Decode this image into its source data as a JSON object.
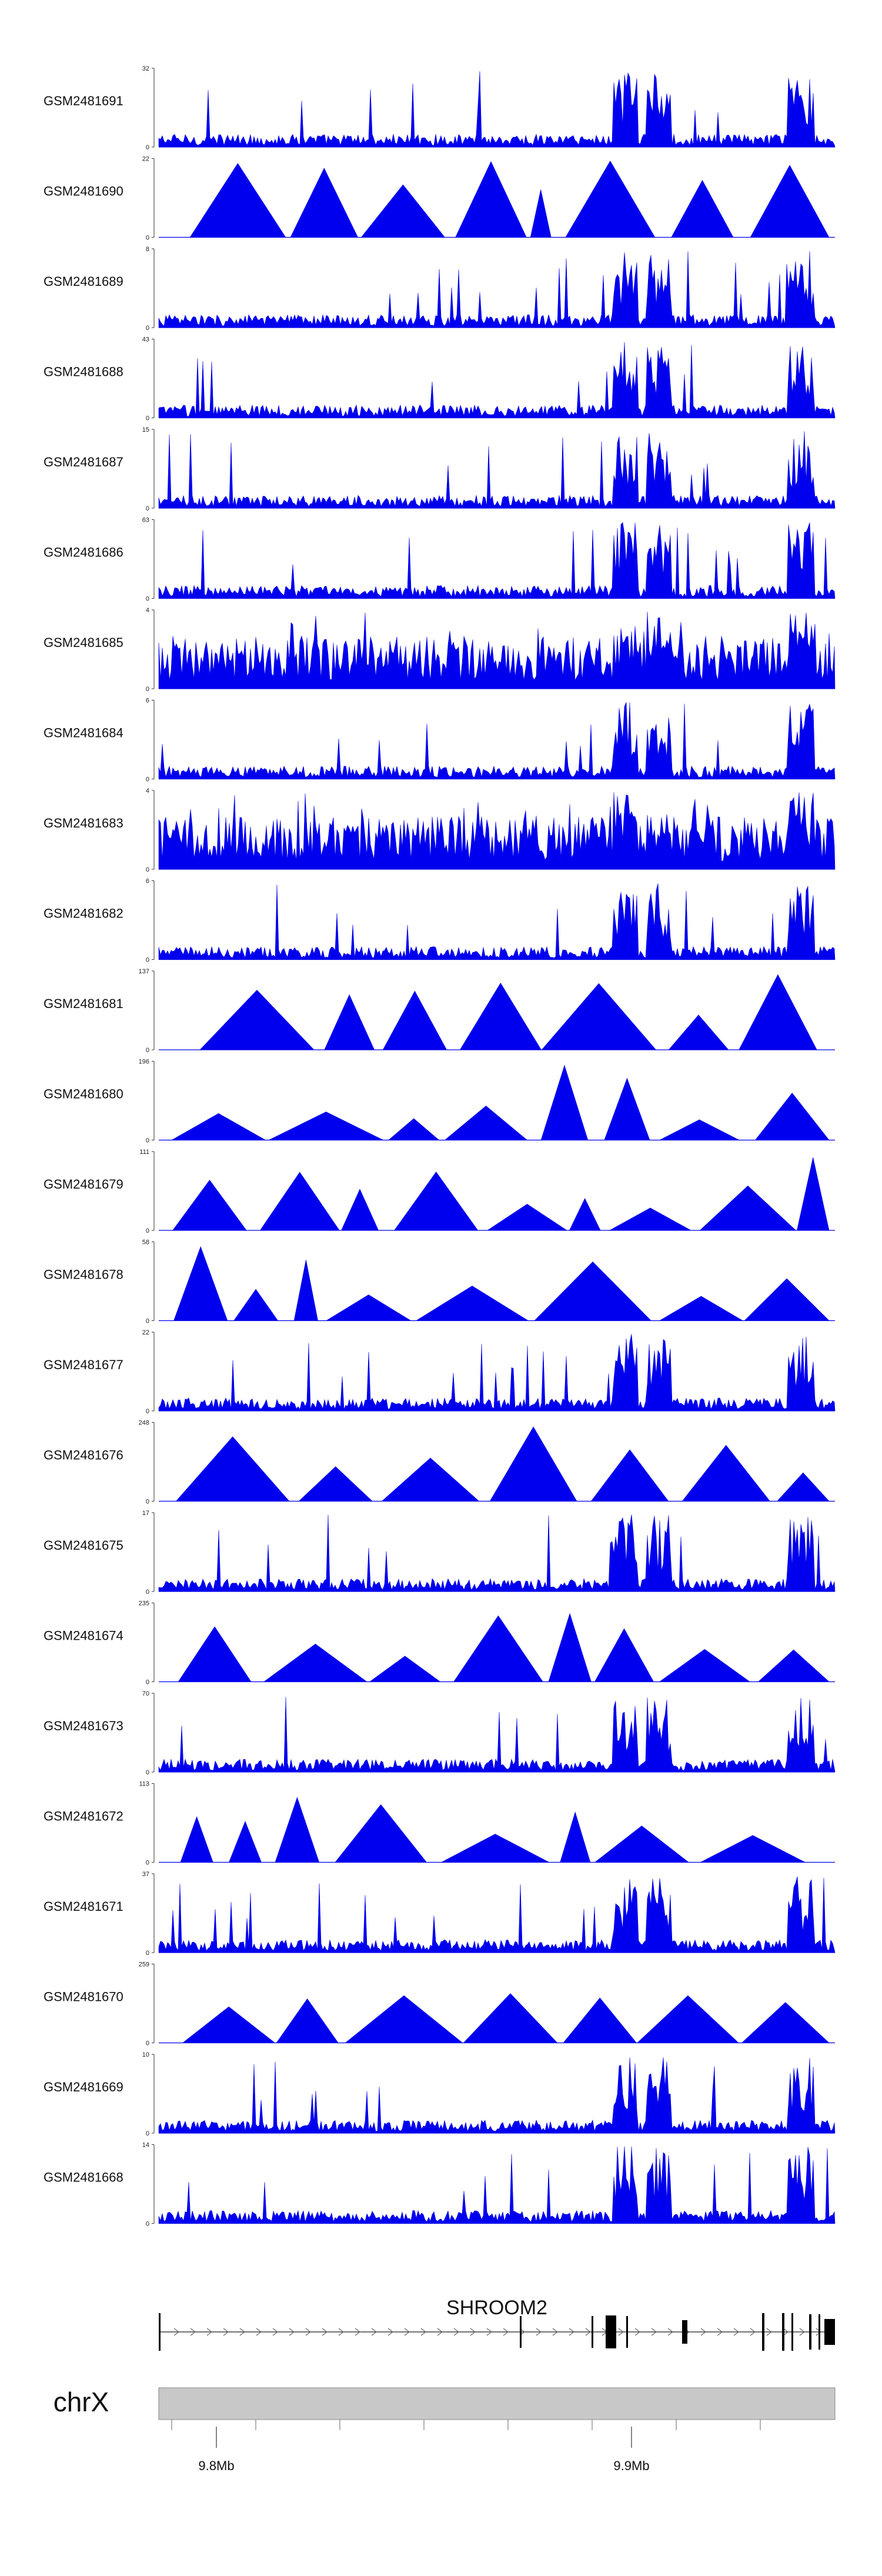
{
  "chart_data": {
    "type": "area",
    "title": "",
    "tracks": [
      {
        "name": "GSM2481691",
        "ymax": "32",
        "pattern": "noise-peaks",
        "series_color": "#0000ee"
      },
      {
        "name": "GSM2481690",
        "ymax": "22",
        "pattern": "triangles",
        "series_color": "#0000ee"
      },
      {
        "name": "GSM2481689",
        "ymax": "8",
        "pattern": "noise-peaks",
        "series_color": "#0000ee"
      },
      {
        "name": "GSM2481688",
        "ymax": "43",
        "pattern": "noise-peaks",
        "series_color": "#0000ee"
      },
      {
        "name": "GSM2481687",
        "ymax": "15",
        "pattern": "noise-peaks",
        "series_color": "#0000ee"
      },
      {
        "name": "GSM2481686",
        "ymax": "63",
        "pattern": "noise-peaks",
        "series_color": "#0000ee"
      },
      {
        "name": "GSM2481685",
        "ymax": "4",
        "pattern": "dense",
        "series_color": "#0000ee"
      },
      {
        "name": "GSM2481684",
        "ymax": "6",
        "pattern": "noise-peaks",
        "series_color": "#0000ee"
      },
      {
        "name": "GSM2481683",
        "ymax": "4",
        "pattern": "dense",
        "series_color": "#0000ee"
      },
      {
        "name": "GSM2481682",
        "ymax": "6",
        "pattern": "noise-peaks",
        "series_color": "#0000ee"
      },
      {
        "name": "GSM2481681",
        "ymax": "137",
        "pattern": "triangles",
        "series_color": "#0000ee"
      },
      {
        "name": "GSM2481680",
        "ymax": "196",
        "pattern": "triangles",
        "series_color": "#0000ee"
      },
      {
        "name": "GSM2481679",
        "ymax": "111",
        "pattern": "triangles",
        "series_color": "#0000ee"
      },
      {
        "name": "GSM2481678",
        "ymax": "58",
        "pattern": "triangles",
        "series_color": "#0000ee"
      },
      {
        "name": "GSM2481677",
        "ymax": "22",
        "pattern": "noise-peaks",
        "series_color": "#0000ee"
      },
      {
        "name": "GSM2481676",
        "ymax": "248",
        "pattern": "triangles",
        "series_color": "#0000ee"
      },
      {
        "name": "GSM2481675",
        "ymax": "17",
        "pattern": "noise-peaks",
        "series_color": "#0000ee"
      },
      {
        "name": "GSM2481674",
        "ymax": "235",
        "pattern": "triangles",
        "series_color": "#0000ee"
      },
      {
        "name": "GSM2481673",
        "ymax": "70",
        "pattern": "noise-peaks",
        "series_color": "#0000ee"
      },
      {
        "name": "GSM2481672",
        "ymax": "113",
        "pattern": "triangles",
        "series_color": "#0000ee"
      },
      {
        "name": "GSM2481671",
        "ymax": "37",
        "pattern": "noise-peaks",
        "series_color": "#0000ee"
      },
      {
        "name": "GSM2481670",
        "ymax": "259",
        "pattern": "triangles",
        "series_color": "#0000ee"
      },
      {
        "name": "GSM2481669",
        "ymax": "10",
        "pattern": "noise-peaks",
        "series_color": "#0000ee"
      },
      {
        "name": "GSM2481668",
        "ymax": "14",
        "pattern": "noise-peaks",
        "series_color": "#0000ee"
      }
    ],
    "gene": {
      "name": "SHROOM2",
      "strand": "+"
    },
    "chromosome": {
      "name": "chrX"
    },
    "axis": {
      "tick_labels": [
        "9.8Mb",
        "9.9Mb"
      ],
      "minor_ticks": 8
    },
    "ylim_min": "0"
  },
  "colors": {
    "signal": "#0000ee",
    "ideogram": "#c8c8c8",
    "ink": "#111111"
  }
}
